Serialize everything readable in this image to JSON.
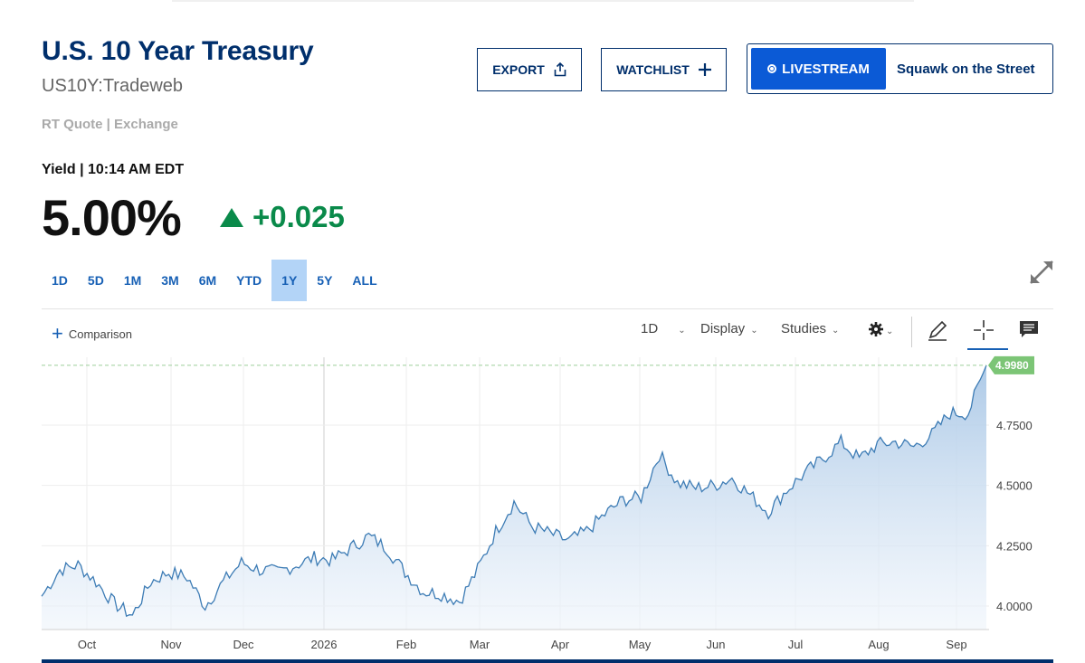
{
  "header": {
    "title": "U.S. 10 Year Treasury",
    "symbol": "US10Y:Tradeweb",
    "quote_type": "RT Quote | Exchange"
  },
  "actions": {
    "export_label": "EXPORT",
    "watchlist_label": "WATCHLIST",
    "livestream_label": "LIVESTREAM",
    "livestream_show": "Squawk on the Street"
  },
  "quote": {
    "label": "Yield | 10:14 AM EDT",
    "price": "5.00%",
    "change": "+0.025",
    "direction": "up"
  },
  "ranges": [
    "1D",
    "5D",
    "1M",
    "3M",
    "6M",
    "YTD",
    "1Y",
    "5Y",
    "ALL"
  ],
  "active_range": "1Y",
  "toolbar": {
    "comparison_label": "Comparison",
    "interval_label": "1D",
    "display_label": "Display",
    "studies_label": "Studies",
    "icons": [
      "gear-icon",
      "pencil-icon",
      "crosshair-icon",
      "comment-icon"
    ]
  },
  "colors": {
    "brand": "#002f6c",
    "link": "#1760b5",
    "up": "#0a8a4a",
    "line": "#3d7cb5",
    "last_label_bg": "#7cc576"
  },
  "chart_data": {
    "type": "area",
    "x_tick_labels": [
      "Oct",
      "Nov",
      "Dec",
      "2026",
      "Feb",
      "Mar",
      "Apr",
      "May",
      "Jun",
      "Jul",
      "Aug",
      "Sep"
    ],
    "y_tick_labels": [
      "4.0000",
      "4.2500",
      "4.5000",
      "4.7500"
    ],
    "ylim": [
      3.9,
      5.05
    ],
    "last_value": 4.998,
    "last_value_label": "4.9980",
    "grid": true,
    "y_axis_side": "right",
    "series": [
      {
        "x": [
          "Sep 22",
          "Sep 29",
          "Oct 6",
          "Oct 13",
          "Oct 20",
          "Oct 27",
          "Nov 3",
          "Nov 10",
          "Nov 17",
          "Nov 24",
          "Dec 1",
          "Dec 8",
          "Dec 15",
          "Dec 22",
          "Dec 29",
          "Jan 5",
          "Jan 12",
          "Jan 19",
          "Jan 26",
          "Feb 2",
          "Feb 9",
          "Feb 16",
          "Feb 23",
          "Mar 2",
          "Mar 9",
          "Mar 16",
          "Mar 23",
          "Mar 30",
          "Apr 6",
          "Apr 13",
          "Apr 20",
          "Apr 27",
          "May 4",
          "May 11",
          "May 18",
          "May 25",
          "Jun 1",
          "Jun 8",
          "Jun 15",
          "Jun 22",
          "Jun 29",
          "Jul 6",
          "Jul 13",
          "Jul 20",
          "Jul 27",
          "Aug 3",
          "Aug 10",
          "Aug 17",
          "Aug 24",
          "Aug 31",
          "Sep 7",
          "Sep 14",
          "Sep 18"
        ],
        "values": [
          4.04,
          4.15,
          4.17,
          4.1,
          4.01,
          3.96,
          4.1,
          4.14,
          4.12,
          4.0,
          4.1,
          4.18,
          4.15,
          4.14,
          4.17,
          4.2,
          4.19,
          4.24,
          4.29,
          4.24,
          4.14,
          4.06,
          4.05,
          4.02,
          4.15,
          4.31,
          4.43,
          4.33,
          4.3,
          4.27,
          4.31,
          4.38,
          4.44,
          4.45,
          4.63,
          4.51,
          4.49,
          4.5,
          4.53,
          4.46,
          4.39,
          4.48,
          4.55,
          4.61,
          4.68,
          4.61,
          4.67,
          4.68,
          4.66,
          4.71,
          4.8,
          4.8,
          4.998
        ]
      }
    ]
  }
}
